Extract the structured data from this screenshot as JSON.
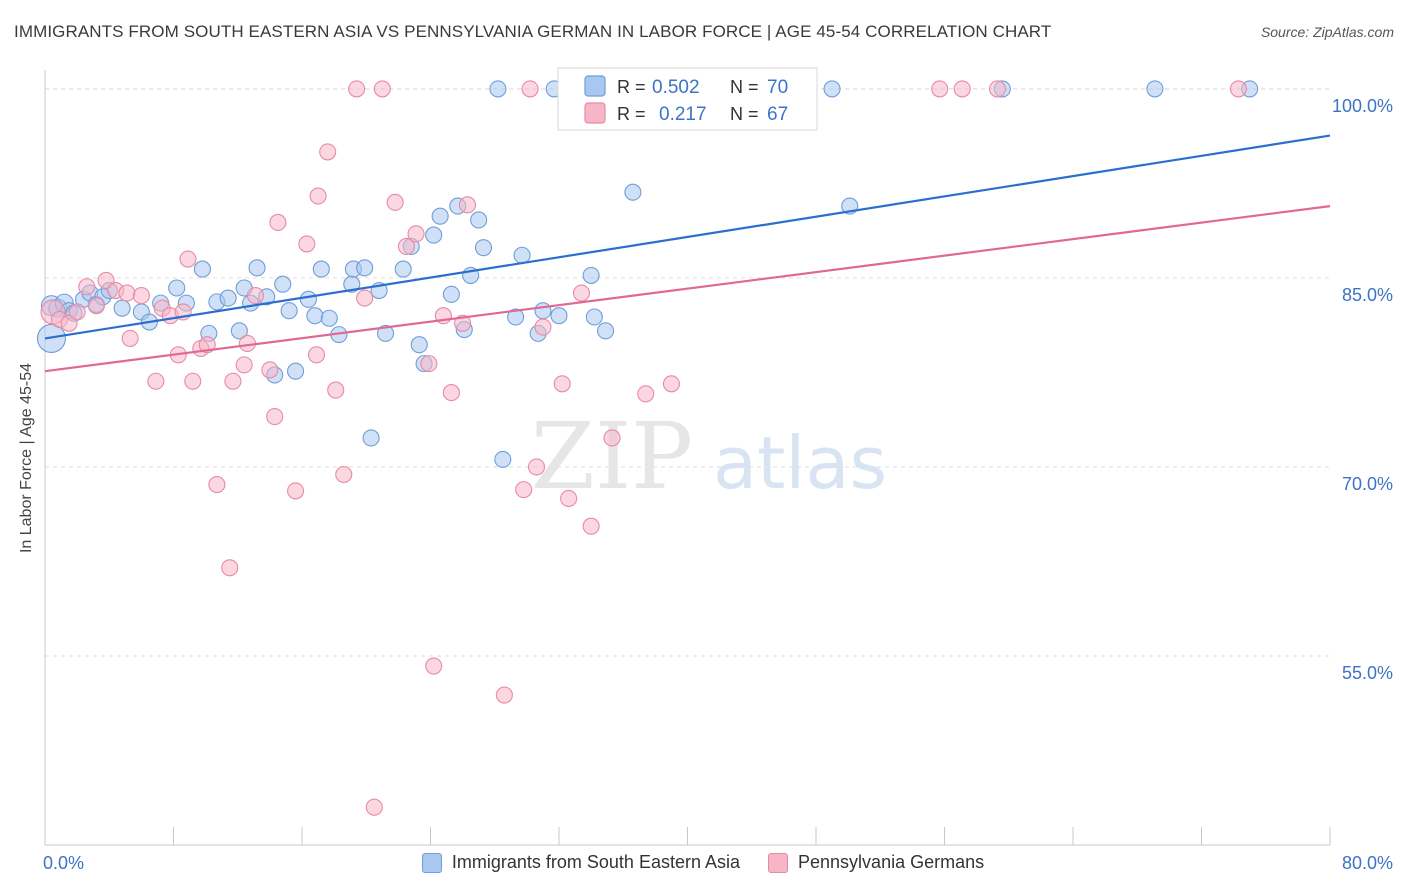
{
  "title": "IMMIGRANTS FROM SOUTH EASTERN ASIA VS PENNSYLVANIA GERMAN IN LABOR FORCE | AGE 45-54 CORRELATION CHART",
  "source": "Source: ZipAtlas.com",
  "watermark": {
    "zip": "ZIP",
    "atlas": "atlas"
  },
  "colors": {
    "blue_fill": "#a9c8f0",
    "blue_stroke": "#6f9ed8",
    "blue_line": "#2a6fcf",
    "pink_fill": "#f6b6c8",
    "pink_stroke": "#e88aa6",
    "pink_line": "#e06894",
    "tick_label": "#3d73c4",
    "grid": "#dddddd"
  },
  "chart_data": {
    "type": "scatter",
    "title": "IMMIGRANTS FROM SOUTH EASTERN ASIA VS PENNSYLVANIA GERMAN IN LABOR FORCE | AGE 45-54 CORRELATION CHART",
    "xlabel": "",
    "ylabel": "In Labor Force | Age 45-54",
    "xlim": [
      0,
      80
    ],
    "ylim": [
      40,
      101.5
    ],
    "x_tick_labels": [
      "0.0%",
      "80.0%"
    ],
    "y_ticks": [
      55,
      70,
      85,
      100
    ],
    "y_tick_labels": [
      "55.0%",
      "70.0%",
      "85.0%",
      "100.0%"
    ],
    "grid": true,
    "legend_position": "top-center",
    "series": [
      {
        "name": "Immigrants from South Eastern Asia",
        "color": "blue",
        "R": "0.502",
        "N": "70",
        "trend": [
          [
            0,
            80.2
          ],
          [
            80,
            96.3
          ]
        ],
        "points": [
          [
            0.4,
            80.2,
            14
          ],
          [
            0.4,
            82.8,
            10
          ],
          [
            0.8,
            82.6,
            9
          ],
          [
            1.2,
            83.0,
            9
          ],
          [
            1.5,
            82.4,
            8
          ],
          [
            1.8,
            82.2,
            8
          ],
          [
            2.4,
            83.3,
            8
          ],
          [
            2.8,
            83.8,
            8
          ],
          [
            3.2,
            82.9,
            8
          ],
          [
            3.6,
            83.5,
            8
          ],
          [
            4.0,
            84.0,
            8
          ],
          [
            4.8,
            82.6,
            8
          ],
          [
            6.0,
            82.3,
            8
          ],
          [
            6.5,
            81.5,
            8
          ],
          [
            7.2,
            83.0,
            8
          ],
          [
            8.2,
            84.2,
            8
          ],
          [
            8.8,
            83.0,
            8
          ],
          [
            9.8,
            85.7,
            8
          ],
          [
            10.2,
            80.6,
            8
          ],
          [
            10.7,
            83.1,
            8
          ],
          [
            11.4,
            83.4,
            8
          ],
          [
            12.1,
            80.8,
            8
          ],
          [
            12.4,
            84.2,
            8
          ],
          [
            12.8,
            83.0,
            8
          ],
          [
            13.2,
            85.8,
            8
          ],
          [
            13.8,
            83.5,
            8
          ],
          [
            14.3,
            77.3,
            8
          ],
          [
            14.8,
            84.5,
            8
          ],
          [
            15.2,
            82.4,
            8
          ],
          [
            15.6,
            77.6,
            8
          ],
          [
            16.4,
            83.3,
            8
          ],
          [
            16.8,
            82.0,
            8
          ],
          [
            17.2,
            85.7,
            8
          ],
          [
            17.7,
            81.8,
            8
          ],
          [
            18.3,
            80.5,
            8
          ],
          [
            19.1,
            84.5,
            8
          ],
          [
            19.2,
            85.7,
            8
          ],
          [
            19.9,
            85.8,
            8
          ],
          [
            20.3,
            72.3,
            8
          ],
          [
            20.8,
            84.0,
            8
          ],
          [
            21.2,
            80.6,
            8
          ],
          [
            22.3,
            85.7,
            8
          ],
          [
            22.8,
            87.5,
            8
          ],
          [
            23.3,
            79.7,
            8
          ],
          [
            23.6,
            78.2,
            8
          ],
          [
            24.2,
            88.4,
            8
          ],
          [
            24.6,
            89.9,
            8
          ],
          [
            25.3,
            83.7,
            8
          ],
          [
            25.7,
            90.7,
            8
          ],
          [
            26.1,
            80.9,
            8
          ],
          [
            26.5,
            85.2,
            8
          ],
          [
            27.0,
            89.6,
            8
          ],
          [
            27.3,
            87.4,
            8
          ],
          [
            28.2,
            100.0,
            8
          ],
          [
            28.5,
            70.6,
            8
          ],
          [
            29.3,
            81.9,
            8
          ],
          [
            29.7,
            86.8,
            8
          ],
          [
            30.7,
            80.6,
            8
          ],
          [
            31.0,
            82.4,
            8
          ],
          [
            31.7,
            100.0,
            8
          ],
          [
            32.0,
            82.0,
            8
          ],
          [
            34.0,
            85.2,
            8
          ],
          [
            34.2,
            81.9,
            8
          ],
          [
            34.9,
            80.8,
            8
          ],
          [
            36.6,
            91.8,
            8
          ],
          [
            49.0,
            100.0,
            8
          ],
          [
            50.1,
            90.7,
            8
          ],
          [
            59.6,
            100.0,
            8
          ],
          [
            69.1,
            100.0,
            8
          ],
          [
            75.0,
            100.0,
            8
          ]
        ]
      },
      {
        "name": "Pennsylvania Germans",
        "color": "pink",
        "R": "0.217",
        "N": "67",
        "trend": [
          [
            0,
            77.6
          ],
          [
            80,
            90.7
          ]
        ],
        "points": [
          [
            0.5,
            82.3,
            12
          ],
          [
            0.9,
            81.7,
            8
          ],
          [
            1.5,
            81.4,
            8
          ],
          [
            2.0,
            82.3,
            8
          ],
          [
            2.6,
            84.3,
            8
          ],
          [
            3.2,
            82.8,
            8
          ],
          [
            3.8,
            84.8,
            8
          ],
          [
            4.4,
            84.0,
            8
          ],
          [
            5.1,
            83.8,
            8
          ],
          [
            5.3,
            80.2,
            8
          ],
          [
            6.0,
            83.6,
            8
          ],
          [
            6.9,
            76.8,
            8
          ],
          [
            7.3,
            82.6,
            8
          ],
          [
            7.8,
            82.0,
            8
          ],
          [
            8.3,
            78.9,
            8
          ],
          [
            8.6,
            82.3,
            8
          ],
          [
            8.9,
            86.5,
            8
          ],
          [
            9.2,
            76.8,
            8
          ],
          [
            9.7,
            79.4,
            8
          ],
          [
            10.1,
            79.7,
            8
          ],
          [
            10.7,
            68.6,
            8
          ],
          [
            11.5,
            62.0,
            8
          ],
          [
            11.7,
            76.8,
            8
          ],
          [
            12.4,
            78.1,
            8
          ],
          [
            12.6,
            79.8,
            8
          ],
          [
            13.1,
            83.6,
            8
          ],
          [
            14.0,
            77.7,
            8
          ],
          [
            14.3,
            74.0,
            8
          ],
          [
            14.5,
            89.4,
            8
          ],
          [
            15.6,
            68.1,
            8
          ],
          [
            16.3,
            87.7,
            8
          ],
          [
            16.9,
            78.9,
            8
          ],
          [
            17.0,
            91.5,
            8
          ],
          [
            17.6,
            95.0,
            8
          ],
          [
            18.1,
            76.1,
            8
          ],
          [
            18.6,
            69.4,
            8
          ],
          [
            19.4,
            100.0,
            8
          ],
          [
            19.9,
            83.4,
            8
          ],
          [
            20.5,
            43.0,
            8
          ],
          [
            21.0,
            100.0,
            8
          ],
          [
            21.8,
            91.0,
            8
          ],
          [
            22.5,
            87.5,
            8
          ],
          [
            23.1,
            88.5,
            8
          ],
          [
            23.9,
            78.2,
            8
          ],
          [
            24.2,
            54.2,
            8
          ],
          [
            24.8,
            82.0,
            8
          ],
          [
            25.3,
            75.9,
            8
          ],
          [
            26.0,
            81.4,
            8
          ],
          [
            26.3,
            90.8,
            8
          ],
          [
            28.6,
            51.9,
            8
          ],
          [
            29.8,
            68.2,
            8
          ],
          [
            30.2,
            100.0,
            8
          ],
          [
            30.6,
            70.0,
            8
          ],
          [
            31.0,
            81.1,
            8
          ],
          [
            32.2,
            76.6,
            8
          ],
          [
            32.6,
            67.5,
            8
          ],
          [
            33.4,
            83.8,
            8
          ],
          [
            34.0,
            65.3,
            8
          ],
          [
            35.3,
            72.3,
            8
          ],
          [
            37.4,
            75.8,
            8
          ],
          [
            39.0,
            76.6,
            8
          ],
          [
            45.6,
            100.0,
            8
          ],
          [
            47.0,
            100.0,
            8
          ],
          [
            55.7,
            100.0,
            8
          ],
          [
            57.1,
            100.0,
            8
          ],
          [
            59.3,
            100.0,
            8
          ],
          [
            74.3,
            100.0,
            8
          ]
        ]
      }
    ]
  }
}
